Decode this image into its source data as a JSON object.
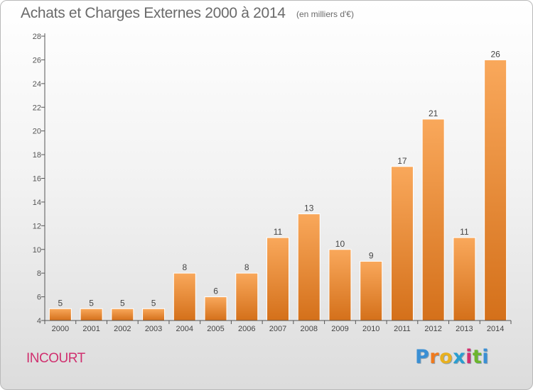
{
  "header": {
    "title": "Achats et Charges Externes 2000 à 2014",
    "subtitle": "(en milliers d'€)"
  },
  "footer": {
    "commune": "INCOURT",
    "logo_letters": [
      "P",
      "r",
      "o",
      "x",
      "i",
      "t",
      "i"
    ],
    "logo_colors": [
      "#3a8fd4",
      "#f07a1e",
      "#e8b020",
      "#2a9ed0",
      "#d2306e",
      "#6cb52d",
      "#3a8fd4"
    ]
  },
  "colors": {
    "bar_light": "#f9a85b",
    "bar_dark": "#d4701a",
    "axis": "#555555",
    "text": "#6a6a6a"
  },
  "chart_data": {
    "type": "bar",
    "title": "Achats et Charges Externes 2000 à 2014",
    "subtitle": "(en milliers d'€)",
    "categories": [
      "2000",
      "2001",
      "2002",
      "2003",
      "2004",
      "2005",
      "2006",
      "2007",
      "2008",
      "2009",
      "2010",
      "2011",
      "2012",
      "2013",
      "2014"
    ],
    "values": [
      5,
      5,
      5,
      5,
      8,
      6,
      8,
      11,
      13,
      10,
      9,
      17,
      21,
      11,
      26
    ],
    "ylim": [
      4,
      28
    ],
    "yticks": [
      4,
      6,
      8,
      10,
      12,
      14,
      16,
      18,
      20,
      22,
      24,
      26,
      28
    ],
    "grid": false,
    "data_labels": true
  }
}
